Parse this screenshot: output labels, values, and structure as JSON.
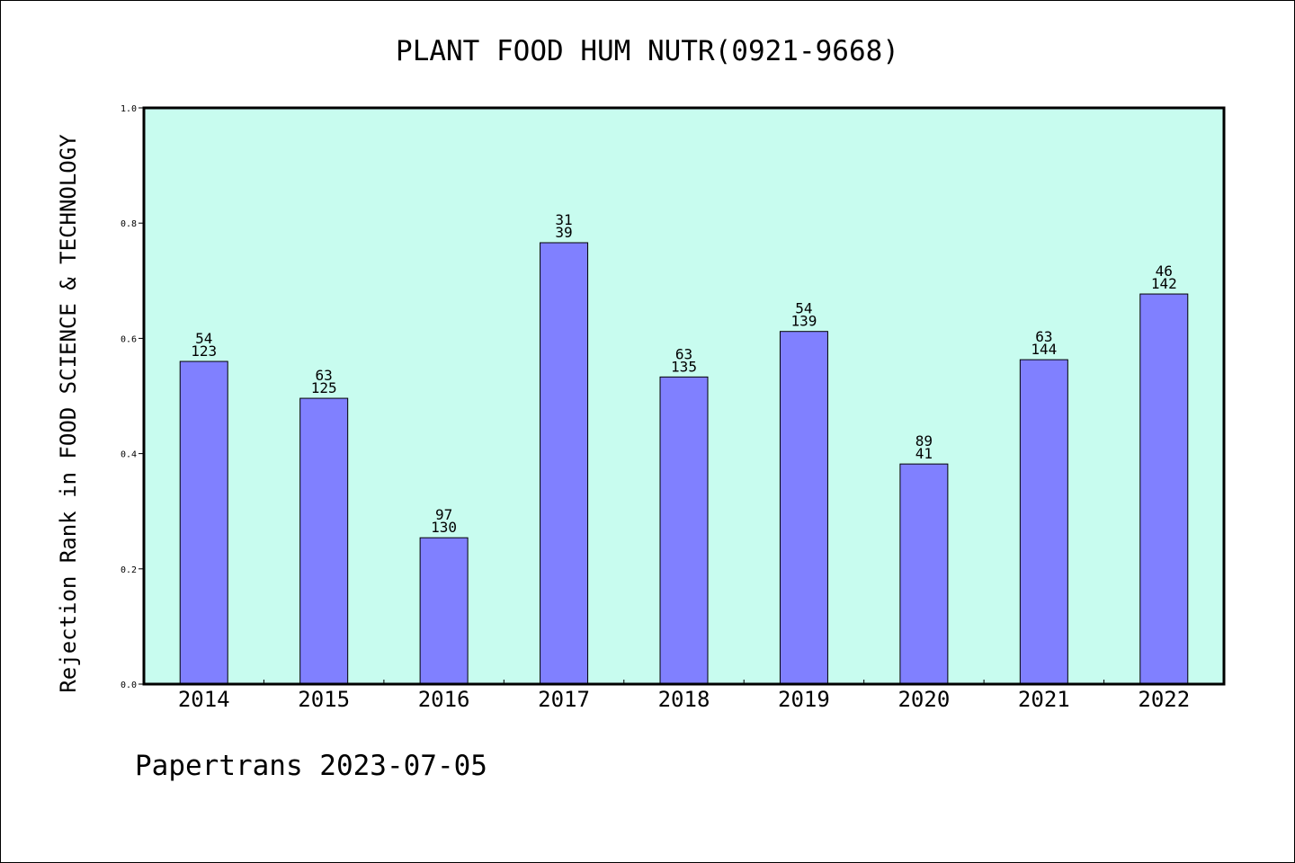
{
  "chart_data": {
    "type": "bar",
    "title": "PLANT FOOD HUM NUTR(0921-9668)",
    "ylabel": "Rejection Rank in FOOD SCIENCE & TECHNOLOGY",
    "xlabel": "",
    "categories": [
      "2014",
      "2015",
      "2016",
      "2017",
      "2018",
      "2019",
      "2020",
      "2021",
      "2022"
    ],
    "values": [
      0.56,
      0.496,
      0.254,
      0.766,
      0.533,
      0.612,
      0.382,
      0.563,
      0.677
    ],
    "label_top": [
      "54",
      "63",
      "97",
      "31",
      "63",
      "54",
      "89",
      "63",
      "46"
    ],
    "label_bottom": [
      "123",
      "125",
      "130",
      "39",
      "135",
      "139",
      "41",
      "144",
      "142"
    ],
    "ylim": [
      0,
      1.0
    ],
    "yticks": [
      "0.0",
      "0.2",
      "0.4",
      "0.6",
      "0.8",
      "1.0"
    ],
    "grid": false,
    "colors": {
      "bar": "#8080ff",
      "plot_background": "#c8fcef",
      "axis": "#000000"
    }
  },
  "footer": "Papertrans 2023-07-05"
}
